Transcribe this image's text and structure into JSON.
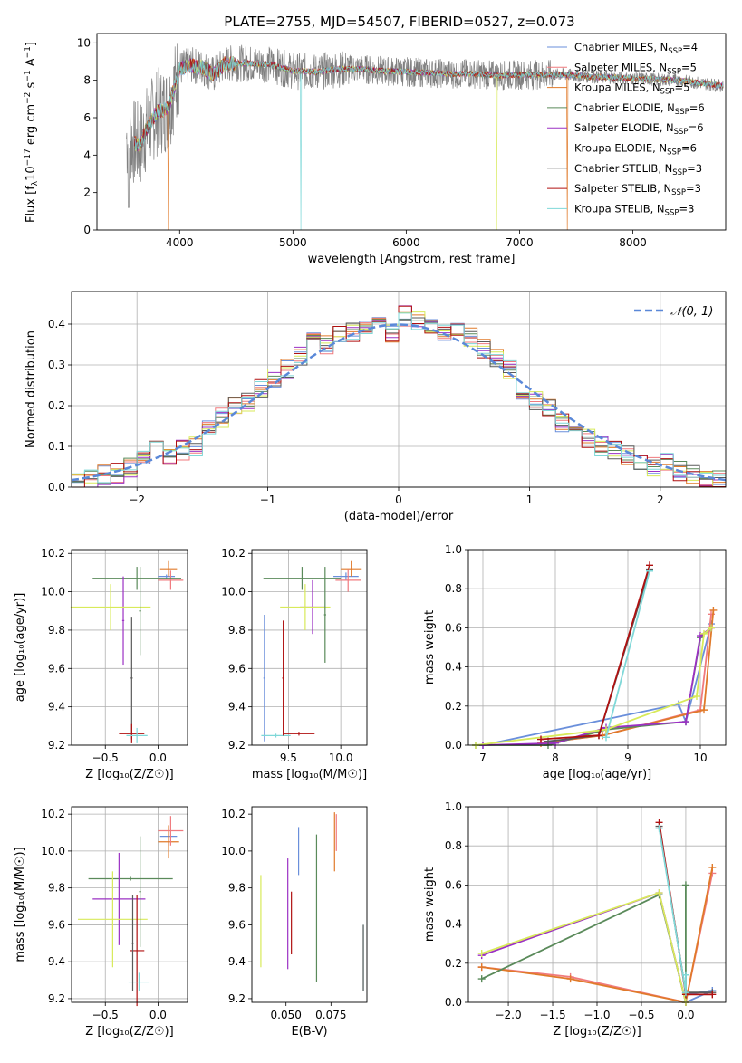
{
  "chart_data": [
    {
      "id": "spectrum",
      "type": "line",
      "title": "PLATE=2755, MJD=54507, FIBERID=0527, z=0.073",
      "xlabel": "wavelength [Angstrom, rest frame]",
      "ylabel": "Flux [f_λ10^-17 erg cm^-2 s^-1 A^-1]",
      "xlim": [
        3270,
        8820
      ],
      "ylim": [
        0,
        10.5
      ],
      "xticks": [
        4000,
        5000,
        6000,
        7000,
        8000
      ],
      "yticks": [
        0,
        2,
        4,
        6,
        8,
        10
      ],
      "grid": false,
      "legend_position": "right",
      "continuum": {
        "x": [
          3530,
          3650,
          3700,
          3800,
          3900,
          4000,
          4100,
          4200,
          4300,
          4400,
          4500,
          4600,
          4800,
          5000,
          5200,
          5400,
          5600,
          5800,
          6000,
          6200,
          6400,
          6600,
          6800,
          7000,
          7200,
          7400,
          7600,
          7800,
          8000,
          8200,
          8400,
          8600,
          8800
        ],
        "y": [
          4.9,
          4.5,
          5.3,
          6.3,
          6.5,
          8.6,
          8.8,
          8.7,
          8.3,
          8.9,
          8.9,
          8.9,
          8.85,
          8.5,
          8.45,
          8.6,
          8.6,
          8.5,
          8.45,
          8.4,
          8.35,
          8.35,
          8.25,
          8.3,
          8.3,
          8.3,
          8.2,
          8.15,
          8.1,
          8.05,
          8.0,
          7.85,
          7.7
        ]
      },
      "series": [
        {
          "name": "Chabrier MILES, N_SSP=4",
          "label_main": "Chabrier MILES, N",
          "label_sub": "SSP",
          "label_tail": "=4",
          "color": "#6a8fdb"
        },
        {
          "name": "Salpeter MILES, N_SSP=5",
          "label_main": "Salpeter MILES, N",
          "label_sub": "SSP",
          "label_tail": "=5",
          "color": "#f07a7e"
        },
        {
          "name": "Kroupa MILES, N_SSP=5",
          "label_main": "Kroupa MILES, N",
          "label_sub": "SSP",
          "label_tail": "=5",
          "color": "#e07a2a"
        },
        {
          "name": "Chabrier ELODIE, N_SSP=6",
          "label_main": "Chabrier ELODIE, N",
          "label_sub": "SSP",
          "label_tail": "=6",
          "color": "#5a8a5a"
        },
        {
          "name": "Salpeter ELODIE, N_SSP=6",
          "label_main": "Salpeter ELODIE, N",
          "label_sub": "SSP",
          "label_tail": "=6",
          "color": "#9b30c4"
        },
        {
          "name": "Kroupa ELODIE, N_SSP=6",
          "label_main": "Kroupa ELODIE, N",
          "label_sub": "SSP",
          "label_tail": "=6",
          "color": "#d8ea5a"
        },
        {
          "name": "Chabrier STELIB, N_SSP=3",
          "label_main": "Chabrier STELIB, N",
          "label_sub": "SSP",
          "label_tail": "=3",
          "color": "#5a5a5a"
        },
        {
          "name": "Salpeter STELIB, N_SSP=3",
          "label_main": "Salpeter STELIB, N",
          "label_sub": "SSP",
          "label_tail": "=3",
          "color": "#b01010"
        },
        {
          "name": "Kroupa STELIB, N_SSP=3",
          "label_main": "Kroupa STELIB, N",
          "label_sub": "SSP",
          "label_tail": "=3",
          "color": "#7fd8d8"
        }
      ],
      "data_color": "#808080"
    },
    {
      "id": "residuals",
      "type": "line",
      "xlabel": "(data-model)/error",
      "ylabel": "Normed distribution",
      "xlim": [
        -2.5,
        2.5
      ],
      "ylim": [
        0,
        0.48
      ],
      "xticks": [
        -2,
        -1,
        0,
        1,
        2
      ],
      "xtick_labels": [
        "−2",
        "−1",
        "0",
        "1",
        "2"
      ],
      "yticks": [
        0.0,
        0.1,
        0.2,
        0.3,
        0.4
      ],
      "ytick_labels": [
        "0.0",
        "0.1",
        "0.2",
        "0.3",
        "0.4"
      ],
      "grid": true,
      "legend_position": "top-right",
      "legend_label": "𝒩(0, 1)",
      "bin_width": 0.1,
      "histogram_centers": [
        -2.45,
        -2.35,
        -2.25,
        -2.15,
        -2.05,
        -1.95,
        -1.85,
        -1.75,
        -1.65,
        -1.55,
        -1.45,
        -1.35,
        -1.25,
        -1.15,
        -1.05,
        -0.95,
        -0.85,
        -0.75,
        -0.65,
        -0.55,
        -0.45,
        -0.35,
        -0.25,
        -0.15,
        -0.05,
        0.05,
        0.15,
        0.25,
        0.35,
        0.45,
        0.55,
        0.65,
        0.75,
        0.85,
        0.95,
        1.05,
        1.15,
        1.25,
        1.35,
        1.45,
        1.55,
        1.65,
        1.75,
        1.85,
        1.95,
        2.05,
        2.15,
        2.25,
        2.35,
        2.45
      ],
      "histogram_base": [
        0.02,
        0.022,
        0.03,
        0.035,
        0.05,
        0.07,
        0.09,
        0.08,
        0.09,
        0.1,
        0.14,
        0.17,
        0.2,
        0.21,
        0.24,
        0.27,
        0.29,
        0.32,
        0.36,
        0.35,
        0.37,
        0.38,
        0.39,
        0.41,
        0.38,
        0.42,
        0.41,
        0.4,
        0.38,
        0.39,
        0.37,
        0.34,
        0.32,
        0.29,
        0.24,
        0.21,
        0.2,
        0.16,
        0.15,
        0.12,
        0.1,
        0.09,
        0.08,
        0.06,
        0.05,
        0.06,
        0.04,
        0.03,
        0.02,
        0.015
      ],
      "gaussian": "N(0,1)",
      "gaussian_color": "#5a88d8"
    },
    {
      "id": "age-vs-Z",
      "type": "scatter",
      "xlabel": "Z [log₁₀(Z/Z☉)]",
      "ylabel": "age  [log₁₀(age/yr)]",
      "xlim": [
        -0.82,
        0.28
      ],
      "ylim": [
        9.2,
        10.22
      ],
      "xticks": [
        -0.5,
        0.0
      ],
      "xtick_labels": [
        "−0.5",
        "0.0"
      ],
      "yticks": [
        9.2,
        9.4,
        9.6,
        9.8,
        10.0,
        10.2
      ],
      "ytick_labels": [
        "9.2",
        "9.4",
        "9.6",
        "9.8",
        "10.0",
        "10.2"
      ],
      "grid": true,
      "points": [
        {
          "x": 0.08,
          "y": 10.08,
          "xerr": 0.08,
          "yerr": 0.01,
          "color": "#6a8fdb"
        },
        {
          "x": 0.1,
          "y": 10.12,
          "xerr": 0.08,
          "yerr": 0.04,
          "color": "#e07a2a"
        },
        {
          "x": 0.12,
          "y": 10.06,
          "xerr": 0.12,
          "yerr": 0.05,
          "color": "#f07a7e"
        },
        {
          "x": -0.2,
          "y": 10.07,
          "xerr": 0.42,
          "yerr": 0.06,
          "color": "#5a8a5a"
        },
        {
          "x": -0.33,
          "y": 9.85,
          "xerr": 0.01,
          "yerr": 0.23,
          "color": "#9b30c4"
        },
        {
          "x": -0.45,
          "y": 9.92,
          "xerr": 0.38,
          "yerr": 0.12,
          "color": "#d8ea5a"
        },
        {
          "x": -0.25,
          "y": 9.55,
          "xerr": 0.01,
          "yerr": 0.32,
          "color": "#5a5a5a"
        },
        {
          "x": -0.25,
          "y": 9.26,
          "xerr": 0.12,
          "yerr": 0.05,
          "color": "#b01010"
        },
        {
          "x": -0.2,
          "y": 9.25,
          "xerr": 0.1,
          "yerr": 0.04,
          "color": "#7fd8d8"
        },
        {
          "x": -0.17,
          "y": 9.9,
          "xerr": 0.01,
          "yerr": 0.23,
          "color": "#5a8a5a"
        }
      ]
    },
    {
      "id": "age-vs-mass",
      "type": "scatter",
      "xlabel": "mass [log₁₀(M/M☉)]",
      "xlim": [
        9.15,
        10.25
      ],
      "ylim": [
        9.2,
        10.22
      ],
      "xticks": [
        9.5,
        10.0
      ],
      "xtick_labels": [
        "9.5",
        "10.0"
      ],
      "yticks": [
        9.2,
        9.4,
        9.6,
        9.8,
        10.0,
        10.2
      ],
      "ytick_labels": [
        "9.2",
        "9.4",
        "9.6",
        "9.8",
        "10.0",
        "10.2"
      ],
      "grid": true,
      "points": [
        {
          "x": 10.05,
          "y": 10.08,
          "xerr": 0.12,
          "yerr": 0.02,
          "color": "#6a8fdb"
        },
        {
          "x": 10.1,
          "y": 10.12,
          "xerr": 0.1,
          "yerr": 0.04,
          "color": "#e07a2a"
        },
        {
          "x": 10.07,
          "y": 10.06,
          "xerr": 0.12,
          "yerr": 0.06,
          "color": "#f07a7e"
        },
        {
          "x": 9.63,
          "y": 10.07,
          "xerr": 0.37,
          "yerr": 0.06,
          "color": "#5a8a5a"
        },
        {
          "x": 9.73,
          "y": 9.92,
          "xerr": 0.12,
          "yerr": 0.14,
          "color": "#9b30c4"
        },
        {
          "x": 9.66,
          "y": 9.92,
          "xerr": 0.24,
          "yerr": 0.12,
          "color": "#d8ea5a"
        },
        {
          "x": 9.27,
          "y": 9.55,
          "xerr": 0.01,
          "yerr": 0.33,
          "color": "#6a8fdb"
        },
        {
          "x": 9.6,
          "y": 9.26,
          "xerr": 0.15,
          "yerr": 0.01,
          "color": "#b01010"
        },
        {
          "x": 9.38,
          "y": 9.25,
          "xerr": 0.14,
          "yerr": 0.01,
          "color": "#7fd8d8"
        },
        {
          "x": 9.45,
          "y": 9.55,
          "xerr": 0.01,
          "yerr": 0.3,
          "color": "#b01010"
        },
        {
          "x": 9.85,
          "y": 9.88,
          "xerr": 0.01,
          "yerr": 0.25,
          "color": "#5a8a5a"
        }
      ]
    },
    {
      "id": "weight-vs-age",
      "type": "line",
      "xlabel": "age  [log₁₀(age/yr)]",
      "ylabel": "mass weight",
      "xlim": [
        6.8,
        10.35
      ],
      "ylim": [
        0,
        1.0
      ],
      "xticks": [
        7,
        8,
        9,
        10
      ],
      "xtick_labels": [
        "7",
        "8",
        "9",
        "10"
      ],
      "yticks": [
        0.0,
        0.2,
        0.4,
        0.6,
        0.8,
        1.0
      ],
      "ytick_labels": [
        "0.0",
        "0.2",
        "0.4",
        "0.6",
        "0.8",
        "1.0"
      ],
      "grid": true,
      "series": [
        {
          "color": "#6a8fdb",
          "x": [
            7.0,
            9.7,
            9.8,
            10.15
          ],
          "y": [
            0.0,
            0.21,
            0.12,
            0.62
          ]
        },
        {
          "color": "#f07a7e",
          "x": [
            7.8,
            8.65,
            10.0,
            10.15
          ],
          "y": [
            0.01,
            0.05,
            0.18,
            0.67
          ]
        },
        {
          "color": "#e07a2a",
          "x": [
            7.8,
            8.65,
            10.05,
            10.18
          ],
          "y": [
            0.01,
            0.05,
            0.18,
            0.69
          ]
        },
        {
          "color": "#5a8a5a",
          "x": [
            6.9,
            7.9,
            8.7,
            9.8,
            10.0,
            10.15
          ],
          "y": [
            0.0,
            0.0,
            0.08,
            0.12,
            0.55,
            0.6
          ]
        },
        {
          "color": "#9b30c4",
          "x": [
            7.0,
            8.0,
            8.7,
            9.8,
            10.0,
            10.15
          ],
          "y": [
            0.0,
            0.01,
            0.09,
            0.12,
            0.56,
            0.6
          ]
        },
        {
          "color": "#d8ea5a",
          "x": [
            6.9,
            8.7,
            9.95,
            10.05,
            10.15
          ],
          "y": [
            0.0,
            0.08,
            0.25,
            0.57,
            0.6
          ]
        },
        {
          "color": "#5a5a5a",
          "x": [
            7.9,
            8.6,
            9.3
          ],
          "y": [
            0.02,
            0.05,
            0.9
          ]
        },
        {
          "color": "#b01010",
          "x": [
            7.8,
            8.6,
            9.3
          ],
          "y": [
            0.03,
            0.05,
            0.92
          ]
        },
        {
          "color": "#7fd8d8",
          "x": [
            8.7,
            9.3
          ],
          "y": [
            0.04,
            0.89
          ]
        }
      ]
    },
    {
      "id": "mass-vs-Z",
      "type": "scatter",
      "xlabel": "Z [log₁₀(Z/Z☉)]",
      "ylabel": "mass [log₁₀(M/M☉)]",
      "xlim": [
        -0.82,
        0.28
      ],
      "ylim": [
        9.18,
        10.24
      ],
      "xticks": [
        -0.5,
        0.0
      ],
      "xtick_labels": [
        "−0.5",
        "0.0"
      ],
      "yticks": [
        9.2,
        9.4,
        9.6,
        9.8,
        10.0,
        10.2
      ],
      "ytick_labels": [
        "9.2",
        "9.4",
        "9.6",
        "9.8",
        "10.0",
        "10.2"
      ],
      "grid": true,
      "points": [
        {
          "x": 0.1,
          "y": 10.08,
          "xerr": 0.08,
          "yerr": 0.05,
          "color": "#6a8fdb"
        },
        {
          "x": 0.1,
          "y": 10.05,
          "xerr": 0.1,
          "yerr": 0.09,
          "color": "#e07a2a"
        },
        {
          "x": 0.12,
          "y": 10.11,
          "xerr": 0.12,
          "yerr": 0.08,
          "color": "#f07a7e"
        },
        {
          "x": -0.26,
          "y": 9.85,
          "xerr": 0.4,
          "yerr": 0.01,
          "color": "#5a8a5a"
        },
        {
          "x": -0.37,
          "y": 9.74,
          "xerr": 0.25,
          "yerr": 0.25,
          "color": "#9b30c4"
        },
        {
          "x": -0.43,
          "y": 9.63,
          "xerr": 0.33,
          "yerr": 0.26,
          "color": "#d8ea5a"
        },
        {
          "x": -0.2,
          "y": 9.46,
          "xerr": 0.07,
          "yerr": 0.3,
          "color": "#b01010"
        },
        {
          "x": -0.18,
          "y": 9.29,
          "xerr": 0.1,
          "yerr": 0.05,
          "color": "#7fd8d8"
        },
        {
          "x": -0.17,
          "y": 9.78,
          "xerr": 0.01,
          "yerr": 0.3,
          "color": "#5a8a5a"
        },
        {
          "x": -0.24,
          "y": 9.5,
          "xerr": 0.01,
          "yerr": 0.26,
          "color": "#5a5a5a"
        }
      ]
    },
    {
      "id": "mass-vs-EBV",
      "type": "scatter",
      "xlabel": "E(B-V)",
      "xlim": [
        0.031,
        0.095
      ],
      "ylim": [
        9.18,
        10.24
      ],
      "xticks": [
        0.05,
        0.075
      ],
      "xtick_labels": [
        "0.050",
        "0.075"
      ],
      "yticks": [
        9.2,
        9.4,
        9.6,
        9.8,
        10.0,
        10.2
      ],
      "ytick_labels": [
        "9.2",
        "9.4",
        "9.6",
        "9.8",
        "10.0",
        "10.2"
      ],
      "grid": false,
      "points": [
        {
          "x": 0.057,
          "y": 10.0,
          "yerr": 0.13,
          "color": "#6a8fdb"
        },
        {
          "x": 0.077,
          "y": 10.05,
          "yerr": 0.16,
          "color": "#e07a2a"
        },
        {
          "x": 0.078,
          "y": 10.1,
          "yerr": 0.1,
          "color": "#f07a7e"
        },
        {
          "x": 0.067,
          "y": 9.69,
          "yerr": 0.4,
          "color": "#5a8a5a"
        },
        {
          "x": 0.051,
          "y": 9.66,
          "yerr": 0.3,
          "color": "#9b30c4"
        },
        {
          "x": 0.036,
          "y": 9.62,
          "yerr": 0.25,
          "color": "#d8ea5a"
        },
        {
          "x": 0.053,
          "y": 9.61,
          "yerr": 0.17,
          "color": "#b01010"
        },
        {
          "x": 0.093,
          "y": 9.42,
          "yerr": 0.18,
          "color": "#7fd8d8"
        },
        {
          "x": 0.093,
          "y": 9.42,
          "yerr": 0.18,
          "color": "#5a5a5a"
        }
      ]
    },
    {
      "id": "weight-vs-Z",
      "type": "line",
      "xlabel": "Z [log₁₀(Z/Z☉)]",
      "ylabel": "mass weight",
      "xlim": [
        -2.45,
        0.45
      ],
      "ylim": [
        0,
        1.0
      ],
      "xticks": [
        -2.0,
        -1.5,
        -1.0,
        -0.5,
        0.0
      ],
      "xtick_labels": [
        "−2.0",
        "−1.5",
        "−1.0",
        "−0.5",
        "0.0"
      ],
      "yticks": [
        0.0,
        0.2,
        0.4,
        0.6,
        0.8,
        1.0
      ],
      "ytick_labels": [
        "0.0",
        "0.2",
        "0.4",
        "0.6",
        "0.8",
        "1.0"
      ],
      "grid": true,
      "series": [
        {
          "color": "#6a8fdb",
          "x": [
            0.0,
            0.3,
            0.0,
            0.0
          ],
          "y": [
            0.04,
            0.06,
            0.0,
            0.06
          ]
        },
        {
          "color": "#f07a7e",
          "x": [
            -2.3,
            -1.3,
            0.0,
            0.3
          ],
          "y": [
            0.18,
            0.13,
            0.0,
            0.66
          ]
        },
        {
          "color": "#e07a2a",
          "x": [
            -2.3,
            -1.3,
            0.0,
            0.3
          ],
          "y": [
            0.18,
            0.12,
            0.0,
            0.69
          ]
        },
        {
          "color": "#5a8a5a",
          "x": [
            -2.3,
            -0.3,
            0.0,
            0.0,
            0.0
          ],
          "y": [
            0.12,
            0.55,
            0.0,
            0.6,
            0.0
          ]
        },
        {
          "color": "#9b30c4",
          "x": [
            -2.3,
            -0.3,
            0.0
          ],
          "y": [
            0.24,
            0.56,
            0.0
          ]
        },
        {
          "color": "#d8ea5a",
          "x": [
            -2.3,
            -0.3,
            0.0
          ],
          "y": [
            0.25,
            0.56,
            0.0
          ]
        },
        {
          "color": "#5a5a5a",
          "x": [
            -0.3,
            0.0,
            0.3
          ],
          "y": [
            0.9,
            0.05,
            0.05
          ]
        },
        {
          "color": "#b01010",
          "x": [
            -0.3,
            0.0,
            0.3
          ],
          "y": [
            0.92,
            0.04,
            0.04
          ]
        },
        {
          "color": "#7fd8d8",
          "x": [
            -0.3,
            0.0,
            0.0
          ],
          "y": [
            0.89,
            0.05,
            0.14
          ]
        }
      ]
    }
  ]
}
